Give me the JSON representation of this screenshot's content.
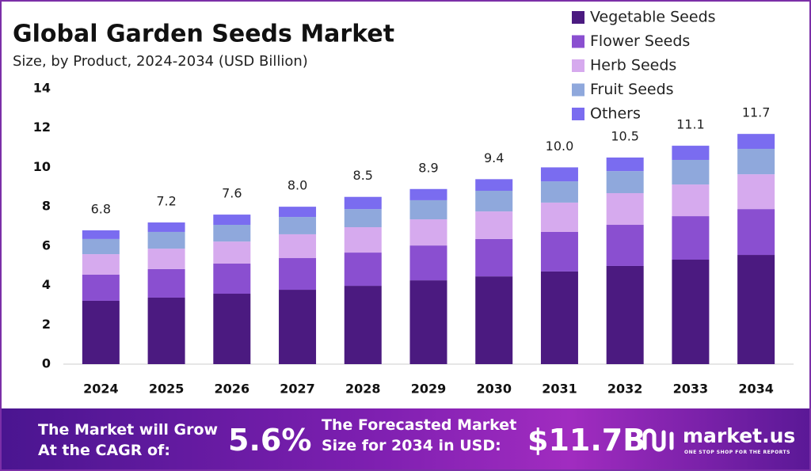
{
  "chart_data": {
    "type": "stacked-bar",
    "title": "Global Garden Seeds Market",
    "subtitle": "Size, by Product, 2024-2034 (USD Billion)",
    "categories": [
      "2024",
      "2025",
      "2026",
      "2027",
      "2028",
      "2029",
      "2030",
      "2031",
      "2032",
      "2033",
      "2034"
    ],
    "series": [
      {
        "name": "Vegetable Seeds",
        "color": "#4b1a80",
        "values": [
          3.22,
          3.38,
          3.58,
          3.78,
          3.98,
          4.26,
          4.46,
          4.71,
          4.99,
          5.31,
          5.55
        ]
      },
      {
        "name": "Flower Seeds",
        "color": "#8a4fd0",
        "values": [
          1.33,
          1.45,
          1.53,
          1.61,
          1.69,
          1.77,
          1.9,
          2.01,
          2.09,
          2.21,
          2.33
        ]
      },
      {
        "name": "Herb Seeds",
        "color": "#d6aaee",
        "values": [
          1.04,
          1.04,
          1.12,
          1.21,
          1.29,
          1.33,
          1.4,
          1.49,
          1.61,
          1.61,
          1.77
        ]
      },
      {
        "name": "Fruit Seeds",
        "color": "#8fa8dc",
        "values": [
          0.77,
          0.85,
          0.85,
          0.88,
          0.92,
          0.97,
          1.05,
          1.08,
          1.12,
          1.25,
          1.29
        ]
      },
      {
        "name": "Others",
        "color": "#7a6cf0",
        "values": [
          0.44,
          0.48,
          0.52,
          0.52,
          0.62,
          0.57,
          0.59,
          0.71,
          0.69,
          0.72,
          0.76
        ]
      }
    ],
    "totals": {
      "values": [
        6.8,
        7.2,
        7.6,
        8.0,
        8.5,
        8.9,
        9.4,
        10.0,
        10.5,
        11.1,
        11.7
      ],
      "value_labels": [
        "6.8",
        "7.2",
        "7.6",
        "8.0",
        "8.5",
        "8.9",
        "9.4",
        "10.0",
        "10.5",
        "11.1",
        "11.7"
      ]
    },
    "ylim": [
      0,
      14
    ],
    "yticks": [
      0,
      2,
      4,
      6,
      8,
      10,
      12,
      14
    ],
    "grid": false,
    "legend": "top-right"
  },
  "footer": {
    "cagr_text": [
      "The Market will Grow",
      "At the CAGR of:"
    ],
    "cagr_value": "5.6%",
    "forecast_text": [
      "The Forecasted Market",
      "Size for 2034 in USD:"
    ],
    "forecast_value": "$11.7B",
    "brand": "market.us",
    "tagline": "ONE STOP SHOP FOR THE REPORTS"
  }
}
